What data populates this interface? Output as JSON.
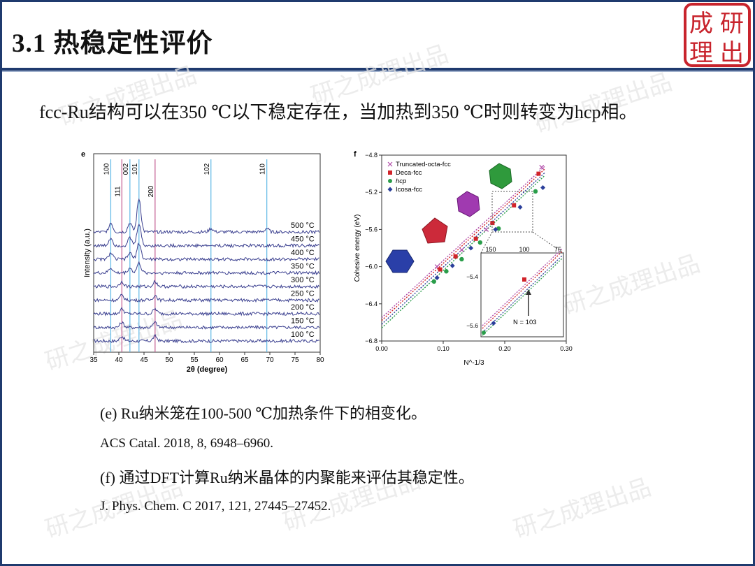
{
  "slide": {
    "title": "3.1 热稳定性评价",
    "logo_text": "成研理出",
    "watermark": "研之成理出品",
    "intro": "fcc-Ru结构可以在350 ℃以下稳定存在，当加热到350 ℃时则转变为hcp相。"
  },
  "captions": [
    {
      "text": "(e) Ru纳米笼在100-500 ℃加热条件下的相变化。"
    },
    {
      "text": "ACS Catal. 2018, 8, 6948–6960."
    },
    {
      "text": "(f) 通过DFT计算Ru纳米晶体的内聚能来评估其稳定性。"
    },
    {
      "text": "J. Phys. Chem. C 2017, 121, 27445–27452."
    }
  ],
  "colors": {
    "frame": "#1f3a6e",
    "logo": "#c8232c",
    "line_blue": "#5fb8e6",
    "line_pink": "#c25a8f",
    "trace": "#3a3f8f"
  },
  "chart_data": [
    {
      "type": "line",
      "panel": "e",
      "xlabel": "2θ (degree)",
      "ylabel": "Intensity (a.u.)",
      "xlim": [
        35,
        80
      ],
      "xticks": [
        35,
        40,
        45,
        50,
        55,
        60,
        65,
        70,
        75,
        80
      ],
      "reference_lines": [
        {
          "label": "100",
          "x": 38.4,
          "color": "blue"
        },
        {
          "label": "111",
          "x": 40.6,
          "color": "pink"
        },
        {
          "label": "002",
          "x": 42.2,
          "color": "blue"
        },
        {
          "label": "101",
          "x": 44.0,
          "color": "blue"
        },
        {
          "label": "200",
          "x": 47.2,
          "color": "pink"
        },
        {
          "label": "102",
          "x": 58.3,
          "color": "blue"
        },
        {
          "label": "110",
          "x": 69.4,
          "color": "blue"
        }
      ],
      "series": [
        {
          "name": "100 °C",
          "peaks": [
            40.6,
            47.2
          ]
        },
        {
          "name": "150 °C",
          "peaks": [
            40.6,
            47.2
          ]
        },
        {
          "name": "200 °C",
          "peaks": [
            40.6,
            47.2
          ]
        },
        {
          "name": "250 °C",
          "peaks": [
            40.6,
            47.2
          ]
        },
        {
          "name": "300 °C",
          "peaks": [
            40.6,
            47.2
          ]
        },
        {
          "name": "350 °C",
          "peaks": [
            38.4,
            42.2,
            44.0
          ]
        },
        {
          "name": "400 °C",
          "peaks": [
            38.4,
            42.2,
            44.0
          ]
        },
        {
          "name": "450 °C",
          "peaks": [
            38.4,
            42.2,
            44.0
          ]
        },
        {
          "name": "500 °C",
          "peaks": [
            38.4,
            42.2,
            44.0,
            58.3,
            69.4
          ]
        }
      ]
    },
    {
      "type": "scatter",
      "panel": "f",
      "xlabel": "N^-1/3",
      "ylabel": "Cohesive energy (eV)",
      "xlim": [
        0.0,
        0.3
      ],
      "ylim": [
        -6.8,
        -4.8
      ],
      "xticks": [
        0.0,
        0.1,
        0.2,
        0.3
      ],
      "yticks": [
        -4.8,
        -5.2,
        -5.6,
        -6.0,
        -6.4,
        -6.8
      ],
      "legend": [
        "Truncated-octa-fcc",
        "Deca-fcc",
        "hcp",
        "Icosa-fcc"
      ],
      "series": [
        {
          "name": "Truncated-octa-fcc",
          "color": "#b04aa8",
          "marker": "x",
          "x": [
            0.09,
            0.13,
            0.17,
            0.26
          ],
          "y": [
            -6.0,
            -5.82,
            -5.6,
            -4.93
          ]
        },
        {
          "name": "Deca-fcc",
          "color": "#d1232a",
          "marker": "square",
          "x": [
            0.095,
            0.12,
            0.153,
            0.18,
            0.215,
            0.255
          ],
          "y": [
            -6.03,
            -5.89,
            -5.7,
            -5.53,
            -5.34,
            -5.0
          ]
        },
        {
          "name": "hcp",
          "color": "#2a9d4a",
          "marker": "circle",
          "x": [
            0.085,
            0.105,
            0.13,
            0.16,
            0.19,
            0.25
          ],
          "y": [
            -6.16,
            -6.05,
            -5.92,
            -5.74,
            -5.59,
            -5.19
          ]
        },
        {
          "name": "Icosa-fcc",
          "color": "#2b3f9a",
          "marker": "diamond",
          "x": [
            0.09,
            0.115,
            0.145,
            0.185,
            0.225,
            0.262
          ],
          "y": [
            -6.12,
            -5.99,
            -5.8,
            -5.6,
            -5.36,
            -5.15
          ]
        }
      ],
      "inset": {
        "xticks_top": [
          150,
          100,
          75
        ],
        "yticks": [
          -5.4,
          -5.6
        ],
        "annotation": "N = 103"
      }
    }
  ]
}
